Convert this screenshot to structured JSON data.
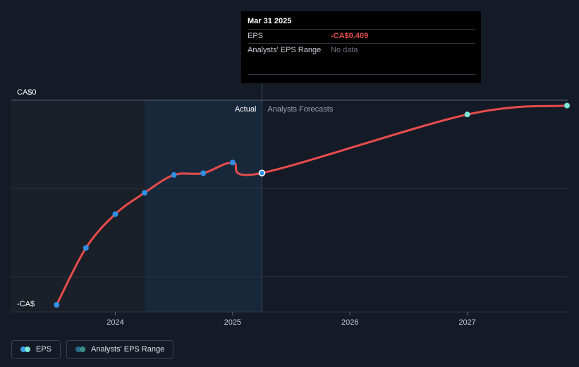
{
  "chart_data": {
    "type": "line",
    "y_axis": {
      "top_label": "CA$0",
      "bottom_label": "-CA$",
      "ylim": [
        -1.15,
        0
      ]
    },
    "x_axis": {
      "ticks": [
        {
          "label": "2024",
          "value": 2024.0
        },
        {
          "label": "2025",
          "value": 2025.0
        },
        {
          "label": "2026",
          "value": 2026.0
        },
        {
          "label": "2027",
          "value": 2027.0
        }
      ],
      "xlim": [
        2023.3,
        2027.85
      ]
    },
    "grid": true,
    "legend_position": "bottom-left",
    "regions": {
      "actual_label": "Actual",
      "forecast_label": "Analysts Forecasts",
      "past_start": 2024.25,
      "divider": 2025.25
    },
    "series": [
      {
        "name": "EPS",
        "color": "#e64c4c",
        "actual_points": [
          {
            "x": 2023.5,
            "y": -1.15
          },
          {
            "x": 2023.75,
            "y": -0.83
          },
          {
            "x": 2024.0,
            "y": -0.64
          },
          {
            "x": 2024.25,
            "y": -0.52
          },
          {
            "x": 2024.5,
            "y": -0.42
          },
          {
            "x": 2024.75,
            "y": -0.41
          },
          {
            "x": 2025.0,
            "y": -0.35
          },
          {
            "x": 2025.25,
            "y": -0.409
          }
        ],
        "forecast_points": [
          {
            "x": 2025.25,
            "y": -0.409
          },
          {
            "x": 2027.0,
            "y": -0.08
          },
          {
            "x": 2027.85,
            "y": -0.03
          }
        ]
      }
    ]
  },
  "tooltip": {
    "date": "Mar 31 2025",
    "rows": [
      {
        "key": "EPS",
        "value": "-CA$0.409"
      },
      {
        "key": "Analysts' EPS Range",
        "value": "No data"
      }
    ]
  },
  "legend": {
    "items": [
      {
        "label": "EPS",
        "colors": [
          "#3aa0e8",
          "#7be8d8"
        ]
      },
      {
        "label": "Analysts' EPS Range",
        "colors": [
          "#2a6a8a",
          "#3c8f8a"
        ]
      }
    ]
  },
  "colors": {
    "background": "#151b26",
    "past_shade": "#1a1f28",
    "actual_shade": "#17283a",
    "grid": "#2e3440",
    "line": "#e64c4c",
    "actual_dot": "#2f8fe0",
    "forecast_dot": "#7be8d8"
  }
}
